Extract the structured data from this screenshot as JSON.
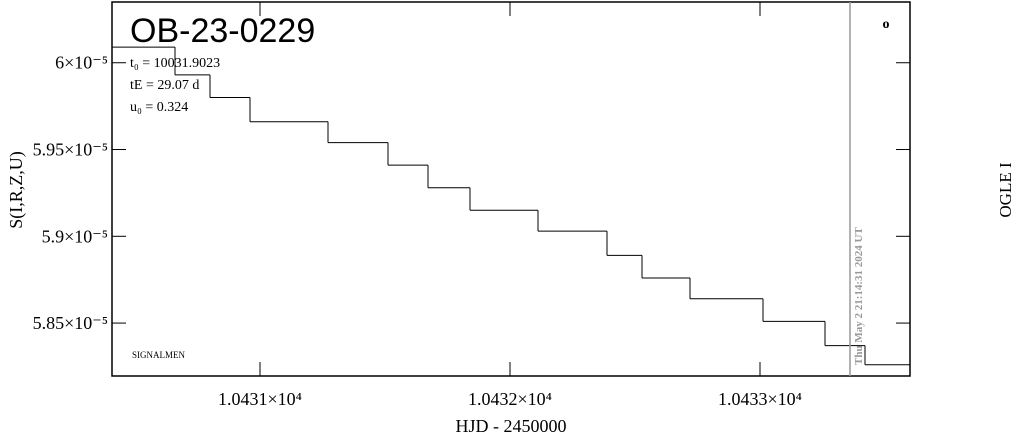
{
  "chart_data": {
    "type": "line",
    "step": "post",
    "title": "OB-23-0229",
    "annotations": [
      "t₀ = 10031.9023",
      "tE = 29.07 d",
      "u₀ = 0.324"
    ],
    "footer": "SIGNALMEN",
    "timestamp": "Thu May  2 21:14:31 2024 UT",
    "right_label": "OGLE I",
    "corner_mark": "o",
    "xlabel": "HJD - 2450000",
    "ylabel": "S(I,R,Z,U)",
    "x": [
      10430.408,
      10430.66,
      10430.8,
      10430.96,
      10431.272,
      10431.512,
      10431.672,
      10431.84,
      10432.112,
      10432.388,
      10432.528,
      10432.72,
      10433.012,
      10433.26,
      10433.42,
      10433.6
    ],
    "series": [
      {
        "name": "OGLE I",
        "color": "#000000",
        "values": [
          6.009e-05,
          5.993e-05,
          5.98e-05,
          5.966e-05,
          5.954e-05,
          5.941e-05,
          5.928e-05,
          5.915e-05,
          5.903e-05,
          5.889e-05,
          5.876e-05,
          5.864e-05,
          5.851e-05,
          5.837e-05,
          5.826e-05,
          5.826e-05
        ]
      }
    ],
    "vline": 10433.36,
    "vline_color": "#999999",
    "xlim": [
      10430.408,
      10433.6
    ],
    "ylim": [
      5.8195e-05,
      6.035e-05
    ],
    "xticks": [
      {
        "value": 10431,
        "label": "1.0431×10⁴"
      },
      {
        "value": 10432,
        "label": "1.0432×10⁴"
      },
      {
        "value": 10433,
        "label": "1.0433×10⁴"
      }
    ],
    "yticks": [
      {
        "value": 6e-05,
        "label": "6×10⁻⁵"
      },
      {
        "value": 5.95e-05,
        "label": "5.95×10⁻⁵"
      },
      {
        "value": 5.9e-05,
        "label": "5.9×10⁻⁵"
      },
      {
        "value": 5.85e-05,
        "label": "5.85×10⁻⁵"
      }
    ]
  }
}
